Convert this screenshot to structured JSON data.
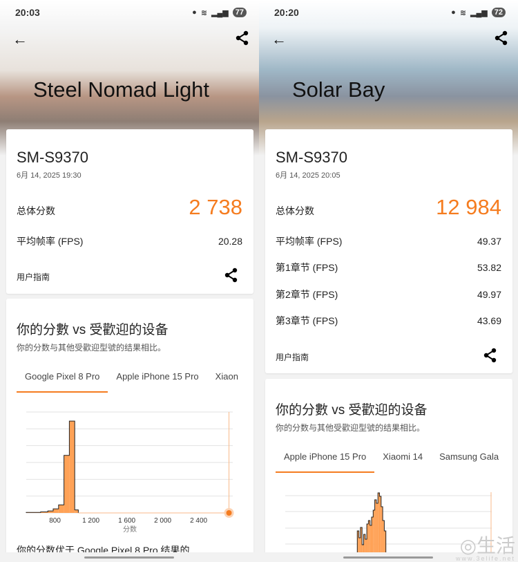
{
  "accent": "#f57c1f",
  "left": {
    "status": {
      "time": "20:03",
      "battery": "77"
    },
    "title": "Steel Nomad Light",
    "device": "SM-S9370",
    "date": "6月 14, 2025 19:30",
    "total_label": "总体分数",
    "total": "2 738",
    "metrics": [
      {
        "label": "平均帧率 (FPS)",
        "value": "20.28"
      }
    ],
    "guide": "用户指南",
    "compare": {
      "title": "你的分數 vs 受歡迎的设备",
      "subtitle": "你的分数与其他受歡迎型號的结果相比。",
      "tabs": [
        "Google Pixel 8 Pro",
        "Apple iPhone 15 Pro",
        "Xiaon"
      ],
      "xlabel": "分数",
      "ticks": [
        "800",
        "1 200",
        "1 600",
        "2 000",
        "2 400"
      ],
      "footer": "你的分数优于 Google Pixel 8 Pro 结果的"
    }
  },
  "right": {
    "status": {
      "time": "20:20",
      "battery": "72"
    },
    "title": "Solar Bay",
    "device": "SM-S9370",
    "date": "6月 14, 2025 20:05",
    "total_label": "总体分数",
    "total": "12 984",
    "metrics": [
      {
        "label": "平均帧率 (FPS)",
        "value": "49.37"
      },
      {
        "label": "第1章节 (FPS)",
        "value": "53.82"
      },
      {
        "label": "第2章节 (FPS)",
        "value": "49.97"
      },
      {
        "label": "第3章节 (FPS)",
        "value": "43.69"
      }
    ],
    "guide": "用户指南",
    "compare": {
      "title": "你的分數 vs 受歡迎的设备",
      "subtitle": "你的分数与其他受歡迎型號的结果相比。",
      "tabs": [
        "Apple iPhone 15 Pro",
        "Xiaomi 14",
        "Samsung Gala"
      ]
    }
  },
  "watermark": {
    "text": "生活",
    "url": "www.3elife.net"
  },
  "chart_data": [
    {
      "type": "bar",
      "xlabel": "分数",
      "xlim": [
        480,
        2780
      ],
      "ticks": [
        800,
        1200,
        1600,
        2000,
        2400
      ],
      "your_score": 2738,
      "bins": [
        [
          480,
          640,
          0.005
        ],
        [
          640,
          720,
          0.01
        ],
        [
          720,
          780,
          0.02
        ],
        [
          780,
          840,
          0.04
        ],
        [
          840,
          900,
          0.08
        ],
        [
          900,
          960,
          0.57
        ],
        [
          960,
          1020,
          0.91
        ],
        [
          1020,
          1060,
          0.03
        ]
      ]
    }
  ]
}
